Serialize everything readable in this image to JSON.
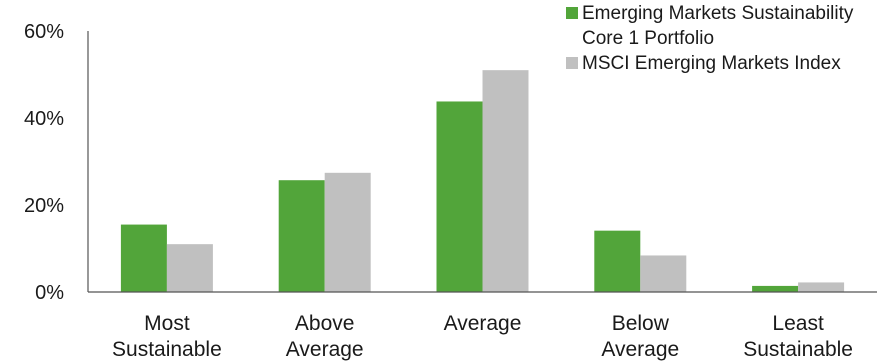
{
  "chart_data": {
    "type": "bar",
    "categories": [
      [
        "Most",
        "Sustainable"
      ],
      [
        "Above",
        "Average"
      ],
      [
        "Average"
      ],
      [
        "Below",
        "Average"
      ],
      [
        "Least",
        "Sustainable"
      ]
    ],
    "series": [
      {
        "name": "Emerging Markets Sustainability Core 1 Portfolio",
        "name_lines": [
          "Emerging Markets Sustainability",
          "Core 1 Portfolio"
        ],
        "color": "#52a53a",
        "values": [
          15.5,
          25.7,
          43.8,
          14.1,
          1.4
        ]
      },
      {
        "name": "MSCI Emerging Markets Index",
        "name_lines": [
          "MSCI Emerging Markets Index"
        ],
        "color": "#c0c0c0",
        "values": [
          11.0,
          27.4,
          51.0,
          8.4,
          2.2
        ]
      }
    ],
    "ylim": [
      0,
      60
    ],
    "yticks": [
      0,
      20,
      40,
      60
    ],
    "ytick_labels": [
      "0%",
      "20%",
      "40%",
      "60%"
    ],
    "legend_position": "top-right",
    "grid": false
  }
}
